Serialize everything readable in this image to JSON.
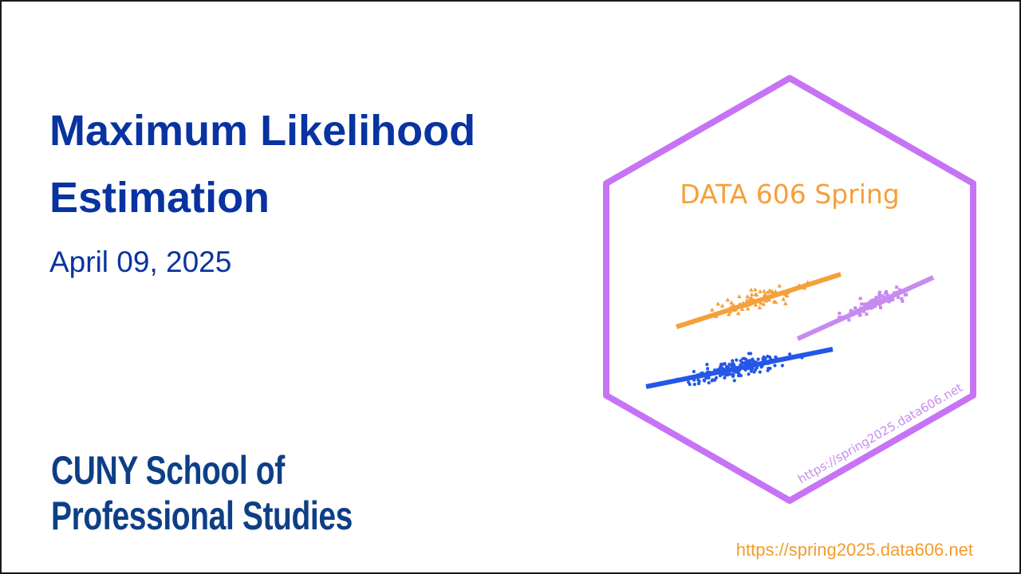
{
  "slide": {
    "title_line1": "Maximum Likelihood",
    "title_line2": "Estimation",
    "date": "April 09, 2025",
    "logo_line1": "CUNY School of",
    "logo_line2": "Professional Studies",
    "footer_url": "https://spring2025.data606.net"
  },
  "badge": {
    "title": "DATA 606 Spring",
    "url": "https://spring2025.data606.net",
    "colors": {
      "hex_border": "#c773f5",
      "orange": "#f5a03a",
      "purple": "#c78bf0",
      "blue": "#2457e8",
      "title_text": "#f5a03a",
      "url_text": "#c78bf0"
    }
  }
}
